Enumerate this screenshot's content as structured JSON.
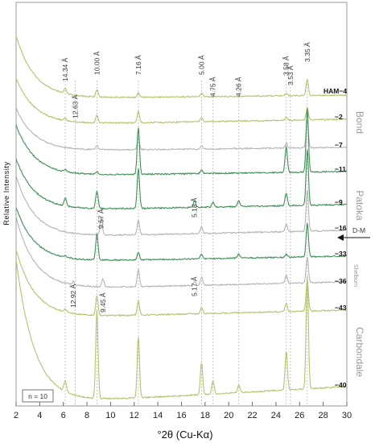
{
  "chart_data": {
    "type": "line",
    "xlabel": "°2θ (Cu-Kα)",
    "ylabel": "Relative Intensity",
    "xlim": [
      2,
      30
    ],
    "x_ticks": [
      "2",
      "4",
      "6",
      "8",
      "10",
      "12",
      "14",
      "16",
      "18",
      "20",
      "22",
      "24",
      "26",
      "28",
      "30"
    ],
    "note": "n = 10",
    "reference_lines": [
      {
        "d": "14.34 Å",
        "x": 6.16
      },
      {
        "d": "12.63 Å",
        "x": 7.0
      },
      {
        "d": "10.00 Å",
        "x": 8.84
      },
      {
        "d": "7.16 Å",
        "x": 12.35
      },
      {
        "d": "5.00 Å",
        "x": 17.7
      },
      {
        "d": "4.75 Å",
        "x": 18.67
      },
      {
        "d": "4.26 Å",
        "x": 20.85
      },
      {
        "d": "3.58 Å",
        "x": 24.87
      },
      {
        "d": "3.53 Å",
        "x": 25.22
      },
      {
        "d": "3.35 Å",
        "x": 26.65
      }
    ],
    "extra_peak_labels": [
      {
        "d": "5.18 Å",
        "x": 17.1,
        "sample": "−9"
      },
      {
        "d": "9.57 Å",
        "x": 9.2,
        "sample": "−16"
      },
      {
        "d": "9.45 Å",
        "x": 9.35,
        "sample": "−36"
      },
      {
        "d": "12.92 Å",
        "x": 6.85,
        "sample": "−36"
      },
      {
        "d": "5.17 Å",
        "x": 17.1,
        "sample": "−36"
      }
    ],
    "series": [
      {
        "name": "HAM−4",
        "color": "#b7c26e",
        "peaks": [
          [
            6.16,
            6
          ],
          [
            8.84,
            9
          ],
          [
            12.35,
            5
          ],
          [
            17.7,
            4
          ],
          [
            24.87,
            3
          ],
          [
            26.65,
            20
          ]
        ]
      },
      {
        "name": "−2",
        "color": "#b7c26e",
        "peaks": [
          [
            6.16,
            3
          ],
          [
            8.84,
            10
          ],
          [
            12.35,
            14
          ],
          [
            17.7,
            5
          ],
          [
            24.87,
            4
          ],
          [
            26.65,
            15
          ]
        ]
      },
      {
        "name": "−7",
        "color": "#b5b5b5",
        "peaks": [
          [
            8.84,
            5
          ],
          [
            12.35,
            14
          ],
          [
            17.7,
            4
          ],
          [
            24.87,
            6
          ],
          [
            26.65,
            34
          ]
        ]
      },
      {
        "name": "−11",
        "color": "#3f8f57",
        "peaks": [
          [
            6.16,
            3
          ],
          [
            8.84,
            3
          ],
          [
            12.35,
            58
          ],
          [
            17.7,
            4
          ],
          [
            24.87,
            32
          ],
          [
            26.65,
            80
          ]
        ]
      },
      {
        "name": "−9",
        "color": "#3f8f57",
        "peaks": [
          [
            6.16,
            10
          ],
          [
            8.84,
            22
          ],
          [
            12.35,
            50
          ],
          [
            17.1,
            8
          ],
          [
            18.67,
            6
          ],
          [
            20.85,
            7
          ],
          [
            24.87,
            16
          ],
          [
            26.65,
            70
          ]
        ]
      },
      {
        "name": "−16",
        "color": "#b5b5b5",
        "peaks": [
          [
            9.2,
            22
          ],
          [
            12.35,
            18
          ],
          [
            17.7,
            8
          ],
          [
            24.87,
            10
          ],
          [
            26.65,
            52
          ]
        ]
      },
      {
        "name": "−33",
        "color": "#3f8f57",
        "peaks": [
          [
            6.16,
            2
          ],
          [
            8.84,
            33
          ],
          [
            12.35,
            9
          ],
          [
            17.7,
            6
          ],
          [
            20.85,
            5
          ],
          [
            24.87,
            4
          ],
          [
            26.65,
            42
          ]
        ]
      },
      {
        "name": "−36",
        "color": "#b5b5b5",
        "peaks": [
          [
            6.85,
            4
          ],
          [
            9.35,
            10
          ],
          [
            12.35,
            21
          ],
          [
            17.1,
            5
          ],
          [
            17.7,
            10
          ],
          [
            24.87,
            10
          ],
          [
            26.65,
            32
          ]
        ]
      },
      {
        "name": "−43",
        "color": "#b7c26e",
        "peaks": [
          [
            6.16,
            3
          ],
          [
            8.84,
            24
          ],
          [
            12.35,
            17
          ],
          [
            17.7,
            8
          ],
          [
            24.87,
            10
          ],
          [
            26.65,
            38
          ]
        ]
      },
      {
        "name": "−40",
        "color": "#b7c26e",
        "peaks": [
          [
            6.16,
            14
          ],
          [
            8.84,
            110
          ],
          [
            12.35,
            75
          ],
          [
            17.7,
            40
          ],
          [
            18.67,
            16
          ],
          [
            20.85,
            10
          ],
          [
            24.87,
            48
          ],
          [
            26.65,
            140
          ]
        ]
      }
    ],
    "formations": [
      "Bond",
      "Patoka",
      "Shelburn",
      "Carbondale"
    ],
    "marker": "D-M"
  }
}
